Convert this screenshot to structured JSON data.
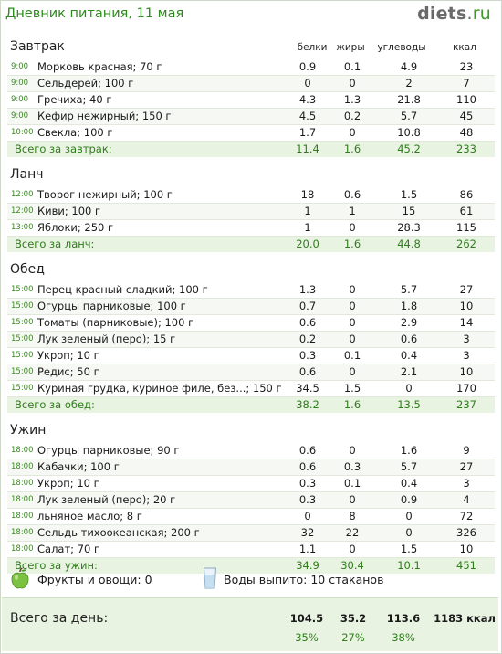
{
  "header": {
    "title": "Дневник питания, 11 мая",
    "brand_name": "diets",
    "brand_dot": ".",
    "brand_tld": "ru"
  },
  "columns": {
    "protein": "белки",
    "fat": "жиры",
    "carbs": "углеводы",
    "kcal": "ккал"
  },
  "meals": [
    {
      "title": "Завтрак",
      "items": [
        {
          "time": "9:00",
          "name": "Морковь красная; 70 г",
          "protein": "0.9",
          "fat": "0.1",
          "carbs": "4.9",
          "kcal": "23"
        },
        {
          "time": "9:00",
          "name": "Сельдерей; 100 г",
          "protein": "0",
          "fat": "0",
          "carbs": "2",
          "kcal": "7"
        },
        {
          "time": "9:00",
          "name": "Гречиха; 40 г",
          "protein": "4.3",
          "fat": "1.3",
          "carbs": "21.8",
          "kcal": "110"
        },
        {
          "time": "9:00",
          "name": "Кефир нежирный; 150 г",
          "protein": "4.5",
          "fat": "0.2",
          "carbs": "5.7",
          "kcal": "45"
        },
        {
          "time": "10:00",
          "name": "Свекла; 100 г",
          "protein": "1.7",
          "fat": "0",
          "carbs": "10.8",
          "kcal": "48"
        }
      ],
      "total": {
        "label": "Всего за завтрак:",
        "protein": "11.4",
        "fat": "1.6",
        "carbs": "45.2",
        "kcal": "233"
      }
    },
    {
      "title": "Ланч",
      "items": [
        {
          "time": "12:00",
          "name": "Творог нежирный; 100 г",
          "protein": "18",
          "fat": "0.6",
          "carbs": "1.5",
          "kcal": "86"
        },
        {
          "time": "12:00",
          "name": "Киви; 100 г",
          "protein": "1",
          "fat": "1",
          "carbs": "15",
          "kcal": "61"
        },
        {
          "time": "13:00",
          "name": "Яблоки; 250 г",
          "protein": "1",
          "fat": "0",
          "carbs": "28.3",
          "kcal": "115"
        }
      ],
      "total": {
        "label": "Всего за ланч:",
        "protein": "20.0",
        "fat": "1.6",
        "carbs": "44.8",
        "kcal": "262"
      }
    },
    {
      "title": "Обед",
      "items": [
        {
          "time": "15:00",
          "name": "Перец красный сладкий; 100 г",
          "protein": "1.3",
          "fat": "0",
          "carbs": "5.7",
          "kcal": "27"
        },
        {
          "time": "15:00",
          "name": "Огурцы парниковые; 100 г",
          "protein": "0.7",
          "fat": "0",
          "carbs": "1.8",
          "kcal": "10"
        },
        {
          "time": "15:00",
          "name": "Томаты (парниковые); 100 г",
          "protein": "0.6",
          "fat": "0",
          "carbs": "2.9",
          "kcal": "14"
        },
        {
          "time": "15:00",
          "name": "Лук зеленый (перо); 15 г",
          "protein": "0.2",
          "fat": "0",
          "carbs": "0.6",
          "kcal": "3"
        },
        {
          "time": "15:00",
          "name": "Укроп; 10 г",
          "protein": "0.3",
          "fat": "0.1",
          "carbs": "0.4",
          "kcal": "3"
        },
        {
          "time": "15:00",
          "name": "Редис; 50 г",
          "protein": "0.6",
          "fat": "0",
          "carbs": "2.1",
          "kcal": "10"
        },
        {
          "time": "15:00",
          "name": "Куриная грудка, куриное филе, без...; 150 г",
          "protein": "34.5",
          "fat": "1.5",
          "carbs": "0",
          "kcal": "170"
        }
      ],
      "total": {
        "label": "Всего за обед:",
        "protein": "38.2",
        "fat": "1.6",
        "carbs": "13.5",
        "kcal": "237"
      }
    },
    {
      "title": "Ужин",
      "items": [
        {
          "time": "18:00",
          "name": "Огурцы парниковые; 90 г",
          "protein": "0.6",
          "fat": "0",
          "carbs": "1.6",
          "kcal": "9"
        },
        {
          "time": "18:00",
          "name": "Кабачки; 100 г",
          "protein": "0.6",
          "fat": "0.3",
          "carbs": "5.7",
          "kcal": "27"
        },
        {
          "time": "18:00",
          "name": "Укроп; 10 г",
          "protein": "0.3",
          "fat": "0.1",
          "carbs": "0.4",
          "kcal": "3"
        },
        {
          "time": "18:00",
          "name": "Лук зеленый (перо); 20 г",
          "protein": "0.3",
          "fat": "0",
          "carbs": "0.9",
          "kcal": "4"
        },
        {
          "time": "18:00",
          "name": "льняное масло; 8 г",
          "protein": "0",
          "fat": "8",
          "carbs": "0",
          "kcal": "72"
        },
        {
          "time": "18:00",
          "name": "Сельдь тихоокеанская; 200 г",
          "protein": "32",
          "fat": "22",
          "carbs": "0",
          "kcal": "326"
        },
        {
          "time": "18:00",
          "name": "Салат; 70 г",
          "protein": "1.1",
          "fat": "0",
          "carbs": "1.5",
          "kcal": "10"
        }
      ],
      "total": {
        "label": "Всего за ужин:",
        "protein": "34.9",
        "fat": "30.4",
        "carbs": "10.1",
        "kcal": "451"
      }
    }
  ],
  "extras": {
    "fruits": "Фрукты и овощи: 0",
    "water": "Воды выпито: 10 стаканов"
  },
  "day_total": {
    "label": "Всего за день:",
    "protein": "104.5",
    "fat": "35.2",
    "carbs": "113.6",
    "kcal": "1183 ккал",
    "protein_pct": "35%",
    "fat_pct": "27%",
    "carbs_pct": "38%"
  },
  "colors": {
    "accent": "#2e8b1e",
    "total_bg": "#e9f3e2"
  },
  "icons": {
    "fruits": "apple-icon",
    "water": "glass-icon"
  }
}
